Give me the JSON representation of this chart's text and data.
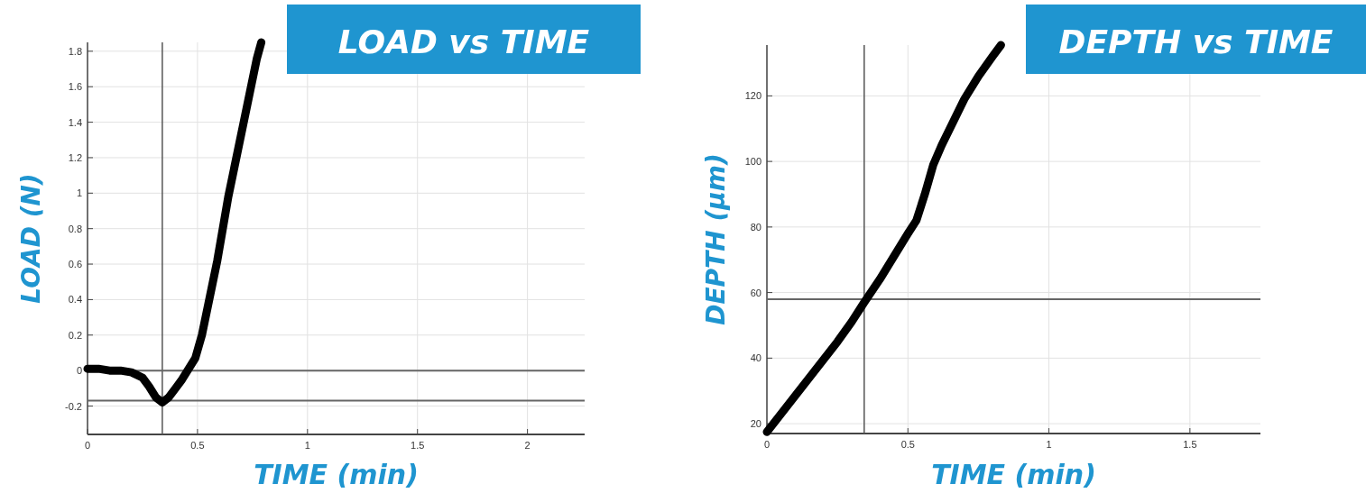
{
  "chart_data": [
    {
      "type": "line",
      "title": "LOAD vs TIME",
      "xlabel": "TIME (min)",
      "ylabel": "LOAD (N)",
      "xlim": [
        0,
        2.26
      ],
      "ylim": [
        -0.36,
        1.85
      ],
      "xticks": [
        0,
        0.5,
        1,
        1.5,
        2
      ],
      "yticks": [
        -0.2,
        0,
        0.2,
        0.4,
        0.6,
        0.8,
        1,
        1.2,
        1.4,
        1.6,
        1.8
      ],
      "grid": true,
      "series": [
        {
          "color": "#000000",
          "x": [
            0,
            0.05,
            0.1,
            0.15,
            0.2,
            0.25,
            0.28,
            0.31,
            0.34,
            0.37,
            0.4,
            0.43,
            0.46,
            0.49,
            0.52,
            0.55,
            0.59,
            0.64,
            0.68,
            0.71,
            0.74,
            0.77,
            0.79
          ],
          "values": [
            0.01,
            0.01,
            0.0,
            0.0,
            -0.01,
            -0.04,
            -0.09,
            -0.15,
            -0.18,
            -0.15,
            -0.1,
            -0.05,
            0.01,
            0.07,
            0.2,
            0.38,
            0.62,
            0.98,
            1.22,
            1.4,
            1.58,
            1.76,
            1.85
          ]
        }
      ],
      "ref_lines": [
        {
          "axis": "x",
          "value": 0.34,
          "color": "#555555"
        },
        {
          "axis": "y",
          "value": 0,
          "color": "#666666"
        },
        {
          "axis": "y",
          "value": -0.17,
          "color": "#666666"
        }
      ]
    },
    {
      "type": "line",
      "title": "DEPTH vs TIME",
      "xlabel": "TIME (min)",
      "ylabel": "DEPTH (µm)",
      "xlim": [
        0,
        1.75
      ],
      "ylim": [
        17,
        135.5
      ],
      "xticks": [
        0,
        0.5,
        1,
        1.5
      ],
      "yticks": [
        20,
        40,
        60,
        80,
        100,
        120
      ],
      "grid": true,
      "series": [
        {
          "color": "#000000",
          "x": [
            0,
            0.05,
            0.1,
            0.15,
            0.2,
            0.25,
            0.3,
            0.345,
            0.4,
            0.45,
            0.5,
            0.53,
            0.56,
            0.59,
            0.62,
            0.66,
            0.7,
            0.75,
            0.8,
            0.83
          ],
          "values": [
            17.5,
            23,
            28.5,
            34,
            39.5,
            45,
            51,
            57,
            64,
            71,
            78,
            82,
            90,
            99,
            105,
            112,
            119,
            126,
            132,
            135.5
          ]
        }
      ],
      "ref_lines": [
        {
          "axis": "x",
          "value": 0.345,
          "color": "#555555"
        },
        {
          "axis": "y",
          "value": 58,
          "color": "#666666"
        }
      ]
    }
  ]
}
